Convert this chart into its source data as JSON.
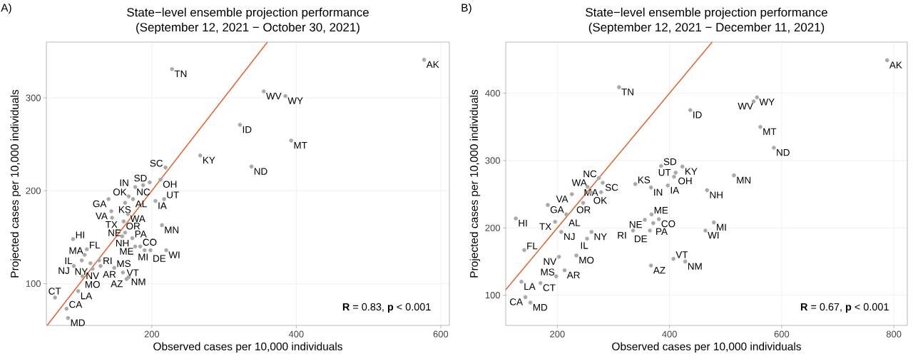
{
  "chart_data": [
    {
      "type": "scatter",
      "title": "State−level ensemble projection performance",
      "subtitle": "(September 12, 2021 − October 30, 2021)",
      "xlabel": "Observed cases per 10,000 individuals",
      "ylabel": "Projected cases per 10,000 individuals",
      "xlim": [
        54,
        612
      ],
      "ylim": [
        55,
        360
      ],
      "xticks": [
        200,
        400,
        600
      ],
      "yticks": [
        100,
        200,
        300
      ],
      "grid": true,
      "series": [
        {
          "marker": "circle",
          "color": "#a9a9a9",
          "x": [
            577,
            228,
            355,
            385,
            322,
            393,
            267,
            338,
            219,
            212,
            197,
            188,
            177,
            168,
            140,
            174,
            205,
            217,
            163,
            144,
            145,
            161,
            167,
            163,
            159,
            173,
            214,
            91,
            110,
            107,
            184,
            177,
            190,
            198,
            220,
            127,
            103,
            115,
            129,
            92,
            148,
            118,
            160,
            168,
            165,
            104,
            98,
            66,
            82,
            84
          ],
          "values": [
            341,
            331,
            307,
            302,
            271,
            254,
            238,
            226,
            225,
            212,
            209,
            206,
            204,
            194,
            191,
            191,
            189,
            191,
            187,
            178,
            171,
            167,
            175,
            155,
            151,
            149,
            163,
            148,
            137,
            131,
            140,
            140,
            136,
            136,
            136,
            125,
            125,
            122,
            119,
            119,
            117,
            116,
            112,
            107,
            105,
            108,
            92,
            85,
            73,
            63
          ]
        },
        {
          "type": "line",
          "marker": "none",
          "color": "#e8602c",
          "x": [
            55,
            360
          ],
          "values": [
            55,
            360
          ]
        }
      ],
      "annotations": [
        "A)",
        "**R** = 0.83, **p** < 0.001",
        {
          "text": "AK",
          "x": 577,
          "y": 341
        },
        {
          "text": "TN",
          "x": 228,
          "y": 331
        },
        {
          "text": "WV",
          "x": 355,
          "y": 307
        },
        {
          "text": "WY",
          "x": 385,
          "y": 302
        },
        {
          "text": "ID",
          "x": 322,
          "y": 271
        },
        {
          "text": "MT",
          "x": 393,
          "y": 254
        },
        {
          "text": "KY",
          "x": 267,
          "y": 238
        },
        {
          "text": "ND",
          "x": 338,
          "y": 226
        },
        {
          "text": "SC",
          "x": 219,
          "y": 225
        },
        {
          "text": "OH",
          "x": 212,
          "y": 212
        },
        {
          "text": "SD",
          "x": 197,
          "y": 209
        },
        {
          "text": "NC",
          "x": 188,
          "y": 206
        },
        {
          "text": "IN",
          "x": 177,
          "y": 204
        },
        {
          "text": "OK",
          "x": 168,
          "y": 194
        },
        {
          "text": "GA",
          "x": 140,
          "y": 191
        },
        {
          "text": "AL",
          "x": 174,
          "y": 191
        },
        {
          "text": "IA",
          "x": 205,
          "y": 189
        },
        {
          "text": "UT",
          "x": 217,
          "y": 191
        },
        {
          "text": "KS",
          "x": 163,
          "y": 187
        },
        {
          "text": "VA",
          "x": 144,
          "y": 178
        },
        {
          "text": "TX",
          "x": 145,
          "y": 171
        },
        {
          "text": "OR",
          "x": 161,
          "y": 167
        },
        {
          "text": "WA",
          "x": 167,
          "y": 175
        },
        {
          "text": "NE",
          "x": 163,
          "y": 155
        },
        {
          "text": "NH",
          "x": 159,
          "y": 151
        },
        {
          "text": "PA",
          "x": 173,
          "y": 149
        },
        {
          "text": "MN",
          "x": 214,
          "y": 163
        },
        {
          "text": "HI",
          "x": 91,
          "y": 148
        },
        {
          "text": "FL",
          "x": 110,
          "y": 137
        },
        {
          "text": "MA",
          "x": 107,
          "y": 131
        },
        {
          "text": "CO",
          "x": 184,
          "y": 140
        },
        {
          "text": "ME",
          "x": 177,
          "y": 140
        },
        {
          "text": "MI",
          "x": 190,
          "y": 136
        },
        {
          "text": "DE",
          "x": 198,
          "y": 136
        },
        {
          "text": "WI",
          "x": 220,
          "y": 136
        },
        {
          "text": "RI",
          "x": 127,
          "y": 125
        },
        {
          "text": "IL",
          "x": 103,
          "y": 125
        },
        {
          "text": "NY",
          "x": 115,
          "y": 122
        },
        {
          "text": "AR",
          "x": 129,
          "y": 119
        },
        {
          "text": "NJ",
          "x": 92,
          "y": 119
        },
        {
          "text": "MS",
          "x": 148,
          "y": 117
        },
        {
          "text": "NV",
          "x": 118,
          "y": 116
        },
        {
          "text": "VT",
          "x": 160,
          "y": 112
        },
        {
          "text": "NM",
          "x": 168,
          "y": 107
        },
        {
          "text": "AZ",
          "x": 165,
          "y": 105
        },
        {
          "text": "MO",
          "x": 104,
          "y": 108
        },
        {
          "text": "LA",
          "x": 98,
          "y": 92
        },
        {
          "text": "CT",
          "x": 66,
          "y": 85
        },
        {
          "text": "CA",
          "x": 82,
          "y": 73
        },
        {
          "text": "MD",
          "x": 84,
          "y": 63
        }
      ]
    },
    {
      "type": "scatter",
      "title": "State−level ensemble projection performance",
      "subtitle": "(September 12, 2021 − December 11, 2021)",
      "xlabel": "Observed cases per 10,000 individuals",
      "ylabel": "Projected cases per 10,000 individuals",
      "xlim": [
        108,
        824
      ],
      "ylim": [
        55,
        476
      ],
      "xticks": [
        200,
        400,
        600,
        800
      ],
      "yticks": [
        100,
        200,
        300,
        400
      ],
      "grid": true,
      "series": [
        {
          "marker": "circle",
          "color": "#a9a9a9",
          "x": [
            788,
            310,
            556,
            550,
            437,
            562,
            586,
            423,
            385,
            411,
            408,
            515,
            339,
            367,
            397,
            467,
            274,
            281,
            254,
            226,
            260,
            278,
            246,
            183,
            216,
            368,
            126,
            196,
            356,
            381,
            371,
            479,
            335,
            365,
            464,
            207,
            261,
            253,
            141,
            234,
            203,
            407,
            428,
            367,
            213,
            198,
            136,
            170,
            143,
            152
          ],
          "values": [
            449,
            409,
            394,
            388,
            375,
            350,
            319,
            291,
            292,
            282,
            276,
            278,
            265,
            260,
            263,
            256,
            274,
            267,
            261,
            250,
            253,
            253,
            237,
            234,
            220,
            220,
            214,
            209,
            212,
            213,
            207,
            208,
            196,
            196,
            196,
            194,
            194,
            184,
            167,
            159,
            157,
            154,
            150,
            144,
            137,
            128,
            120,
            118,
            97,
            89
          ]
        },
        {
          "type": "line",
          "marker": "none",
          "color": "#e8602c",
          "x": [
            108,
            476
          ],
          "values": [
            108,
            476
          ]
        }
      ],
      "annotations": [
        "B)",
        "**R** = 0.67, **p** < 0.001",
        {
          "text": "AK",
          "x": 788,
          "y": 449
        },
        {
          "text": "TN",
          "x": 310,
          "y": 409
        },
        {
          "text": "WY",
          "x": 556,
          "y": 394
        },
        {
          "text": "WV",
          "x": 550,
          "y": 388
        },
        {
          "text": "ID",
          "x": 437,
          "y": 375
        },
        {
          "text": "MT",
          "x": 562,
          "y": 350
        },
        {
          "text": "ND",
          "x": 586,
          "y": 319
        },
        {
          "text": "KY",
          "x": 423,
          "y": 291
        },
        {
          "text": "SD",
          "x": 385,
          "y": 292
        },
        {
          "text": "OH",
          "x": 411,
          "y": 282
        },
        {
          "text": "UT",
          "x": 408,
          "y": 276
        },
        {
          "text": "MN",
          "x": 515,
          "y": 278
        },
        {
          "text": "KS",
          "x": 339,
          "y": 265
        },
        {
          "text": "IN",
          "x": 367,
          "y": 260
        },
        {
          "text": "IA",
          "x": 397,
          "y": 263
        },
        {
          "text": "NH",
          "x": 467,
          "y": 256
        },
        {
          "text": "NC",
          "x": 274,
          "y": 274
        },
        {
          "text": "SC",
          "x": 281,
          "y": 267
        },
        {
          "text": "WA",
          "x": 254,
          "y": 261
        },
        {
          "text": "VA",
          "x": 226,
          "y": 250
        },
        {
          "text": "OK",
          "x": 260,
          "y": 253
        },
        {
          "text": "MA",
          "x": 278,
          "y": 253
        },
        {
          "text": "OR",
          "x": 246,
          "y": 237
        },
        {
          "text": "GA",
          "x": 183,
          "y": 234
        },
        {
          "text": "AL",
          "x": 216,
          "y": 220
        },
        {
          "text": "ME",
          "x": 368,
          "y": 220
        },
        {
          "text": "HI",
          "x": 126,
          "y": 214
        },
        {
          "text": "TX",
          "x": 196,
          "y": 209
        },
        {
          "text": "NE",
          "x": 356,
          "y": 212
        },
        {
          "text": "CO",
          "x": 381,
          "y": 213
        },
        {
          "text": "PA",
          "x": 371,
          "y": 207
        },
        {
          "text": "MI",
          "x": 479,
          "y": 208
        },
        {
          "text": "RI",
          "x": 335,
          "y": 196
        },
        {
          "text": "DE",
          "x": 365,
          "y": 196
        },
        {
          "text": "WI",
          "x": 464,
          "y": 196
        },
        {
          "text": "NJ",
          "x": 207,
          "y": 194
        },
        {
          "text": "NY",
          "x": 261,
          "y": 194
        },
        {
          "text": "IL",
          "x": 253,
          "y": 184
        },
        {
          "text": "FL",
          "x": 141,
          "y": 167
        },
        {
          "text": "MO",
          "x": 234,
          "y": 159
        },
        {
          "text": "NV",
          "x": 203,
          "y": 157
        },
        {
          "text": "VT",
          "x": 407,
          "y": 154
        },
        {
          "text": "NM",
          "x": 428,
          "y": 150
        },
        {
          "text": "AZ",
          "x": 367,
          "y": 144
        },
        {
          "text": "AR",
          "x": 213,
          "y": 137
        },
        {
          "text": "MS",
          "x": 198,
          "y": 128
        },
        {
          "text": "LA",
          "x": 136,
          "y": 120
        },
        {
          "text": "CT",
          "x": 170,
          "y": 118
        },
        {
          "text": "CA",
          "x": 143,
          "y": 97
        },
        {
          "text": "MD",
          "x": 152,
          "y": 89
        }
      ]
    }
  ]
}
